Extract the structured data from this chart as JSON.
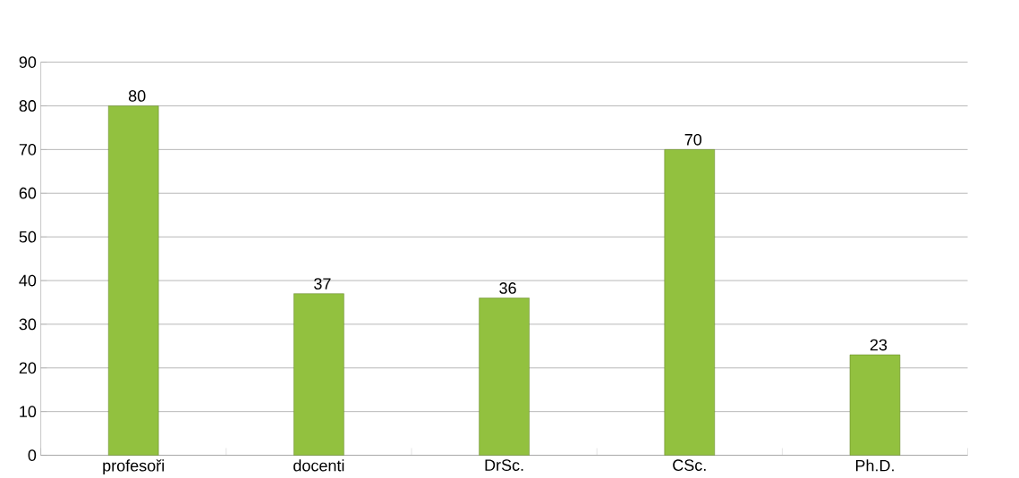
{
  "chart_data": {
    "type": "bar",
    "categories": [
      "profesoři",
      "docenti",
      "DrSc.",
      "CSc.",
      "Ph.D."
    ],
    "values": [
      80,
      37,
      36,
      70,
      23
    ],
    "color": "#92c13f",
    "ylim": [
      0,
      90
    ],
    "yticks": [
      0,
      10,
      20,
      30,
      40,
      50,
      60,
      70,
      80,
      90
    ],
    "grid": "y",
    "data_labels": true
  }
}
